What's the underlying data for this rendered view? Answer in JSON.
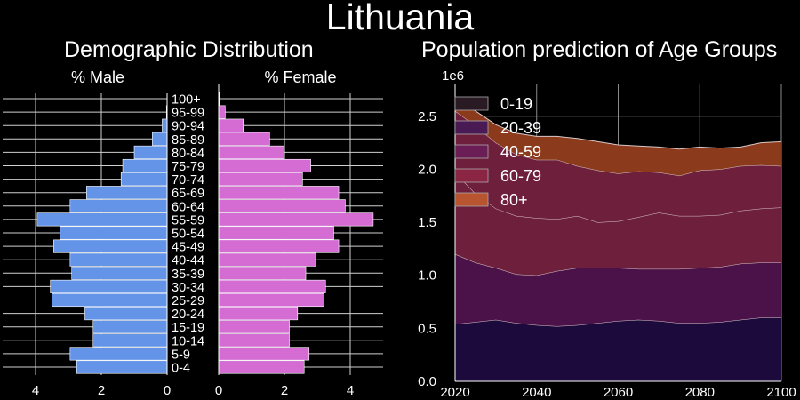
{
  "title": "Lithuania",
  "colors": {
    "male": "#6494e8",
    "female": "#d46cd4",
    "area": [
      "#1d0a3d",
      "#4b1249",
      "#6e1f3c",
      "#6e1f3c",
      "#8c3a1c"
    ],
    "legend": [
      "#2a1a24",
      "#4a1a55",
      "#6b1d55",
      "#8a2644",
      "#b85530"
    ]
  },
  "chart_data": [
    {
      "type": "bar",
      "title": "Demographic Distribution",
      "xlabel_left": "% Male",
      "xlabel_right": "% Female",
      "categories": [
        "0-4",
        "5-9",
        "10-14",
        "15-19",
        "20-24",
        "25-29",
        "30-34",
        "35-39",
        "40-44",
        "45-49",
        "50-54",
        "55-59",
        "60-64",
        "65-69",
        "70-74",
        "75-79",
        "80-84",
        "85-89",
        "90-94",
        "95-99",
        "100+"
      ],
      "series": [
        {
          "name": "% Male",
          "values": [
            2.75,
            2.95,
            2.25,
            2.25,
            2.5,
            3.5,
            3.55,
            2.9,
            2.95,
            3.45,
            3.25,
            3.95,
            2.95,
            2.45,
            1.4,
            1.35,
            1.0,
            0.45,
            0.15,
            0.02,
            0.0
          ]
        },
        {
          "name": "% Female",
          "values": [
            2.6,
            2.75,
            2.15,
            2.15,
            2.4,
            3.2,
            3.25,
            2.65,
            2.95,
            3.65,
            3.5,
            4.7,
            3.85,
            3.65,
            2.55,
            2.8,
            2.0,
            1.55,
            0.75,
            0.2,
            0.02
          ]
        }
      ],
      "xlim": [
        0,
        5
      ],
      "xticks": [
        0,
        2,
        4
      ]
    },
    {
      "type": "area",
      "title": "Population prediction of Age Groups",
      "y_offset_label": "1e6",
      "legend": [
        "0-19",
        "20-39",
        "40-59",
        "60-79",
        "80+"
      ],
      "x": [
        2020,
        2025,
        2030,
        2035,
        2040,
        2045,
        2050,
        2055,
        2060,
        2065,
        2070,
        2075,
        2080,
        2085,
        2090,
        2095,
        2100
      ],
      "series": [
        {
          "name": "0-19",
          "values": [
            0.54,
            0.56,
            0.58,
            0.55,
            0.53,
            0.52,
            0.53,
            0.55,
            0.57,
            0.58,
            0.57,
            0.55,
            0.55,
            0.56,
            0.58,
            0.6,
            0.6
          ]
        },
        {
          "name": "20-39",
          "values": [
            0.66,
            0.56,
            0.49,
            0.46,
            0.47,
            0.52,
            0.54,
            0.52,
            0.5,
            0.48,
            0.49,
            0.51,
            0.52,
            0.52,
            0.53,
            0.52,
            0.52
          ]
        },
        {
          "name": "40-59",
          "values": [
            0.77,
            0.65,
            0.56,
            0.55,
            0.54,
            0.49,
            0.49,
            0.43,
            0.44,
            0.49,
            0.53,
            0.5,
            0.49,
            0.49,
            0.5,
            0.51,
            0.52
          ]
        },
        {
          "name": "60-79",
          "values": [
            0.58,
            0.64,
            0.62,
            0.58,
            0.55,
            0.56,
            0.47,
            0.49,
            0.45,
            0.43,
            0.38,
            0.38,
            0.43,
            0.43,
            0.42,
            0.41,
            0.39
          ]
        },
        {
          "name": "80+",
          "values": [
            0.11,
            0.14,
            0.17,
            0.2,
            0.22,
            0.22,
            0.26,
            0.27,
            0.27,
            0.24,
            0.24,
            0.25,
            0.22,
            0.2,
            0.18,
            0.21,
            0.23
          ]
        }
      ],
      "xlim": [
        2020,
        2100
      ],
      "ylim": [
        0,
        2.8
      ],
      "xticks": [
        2020,
        2040,
        2060,
        2080,
        2100
      ],
      "yticks": [
        0.0,
        0.5,
        1.0,
        1.5,
        2.0,
        2.5
      ],
      "legend_position": "upper-left",
      "grid": true
    }
  ]
}
